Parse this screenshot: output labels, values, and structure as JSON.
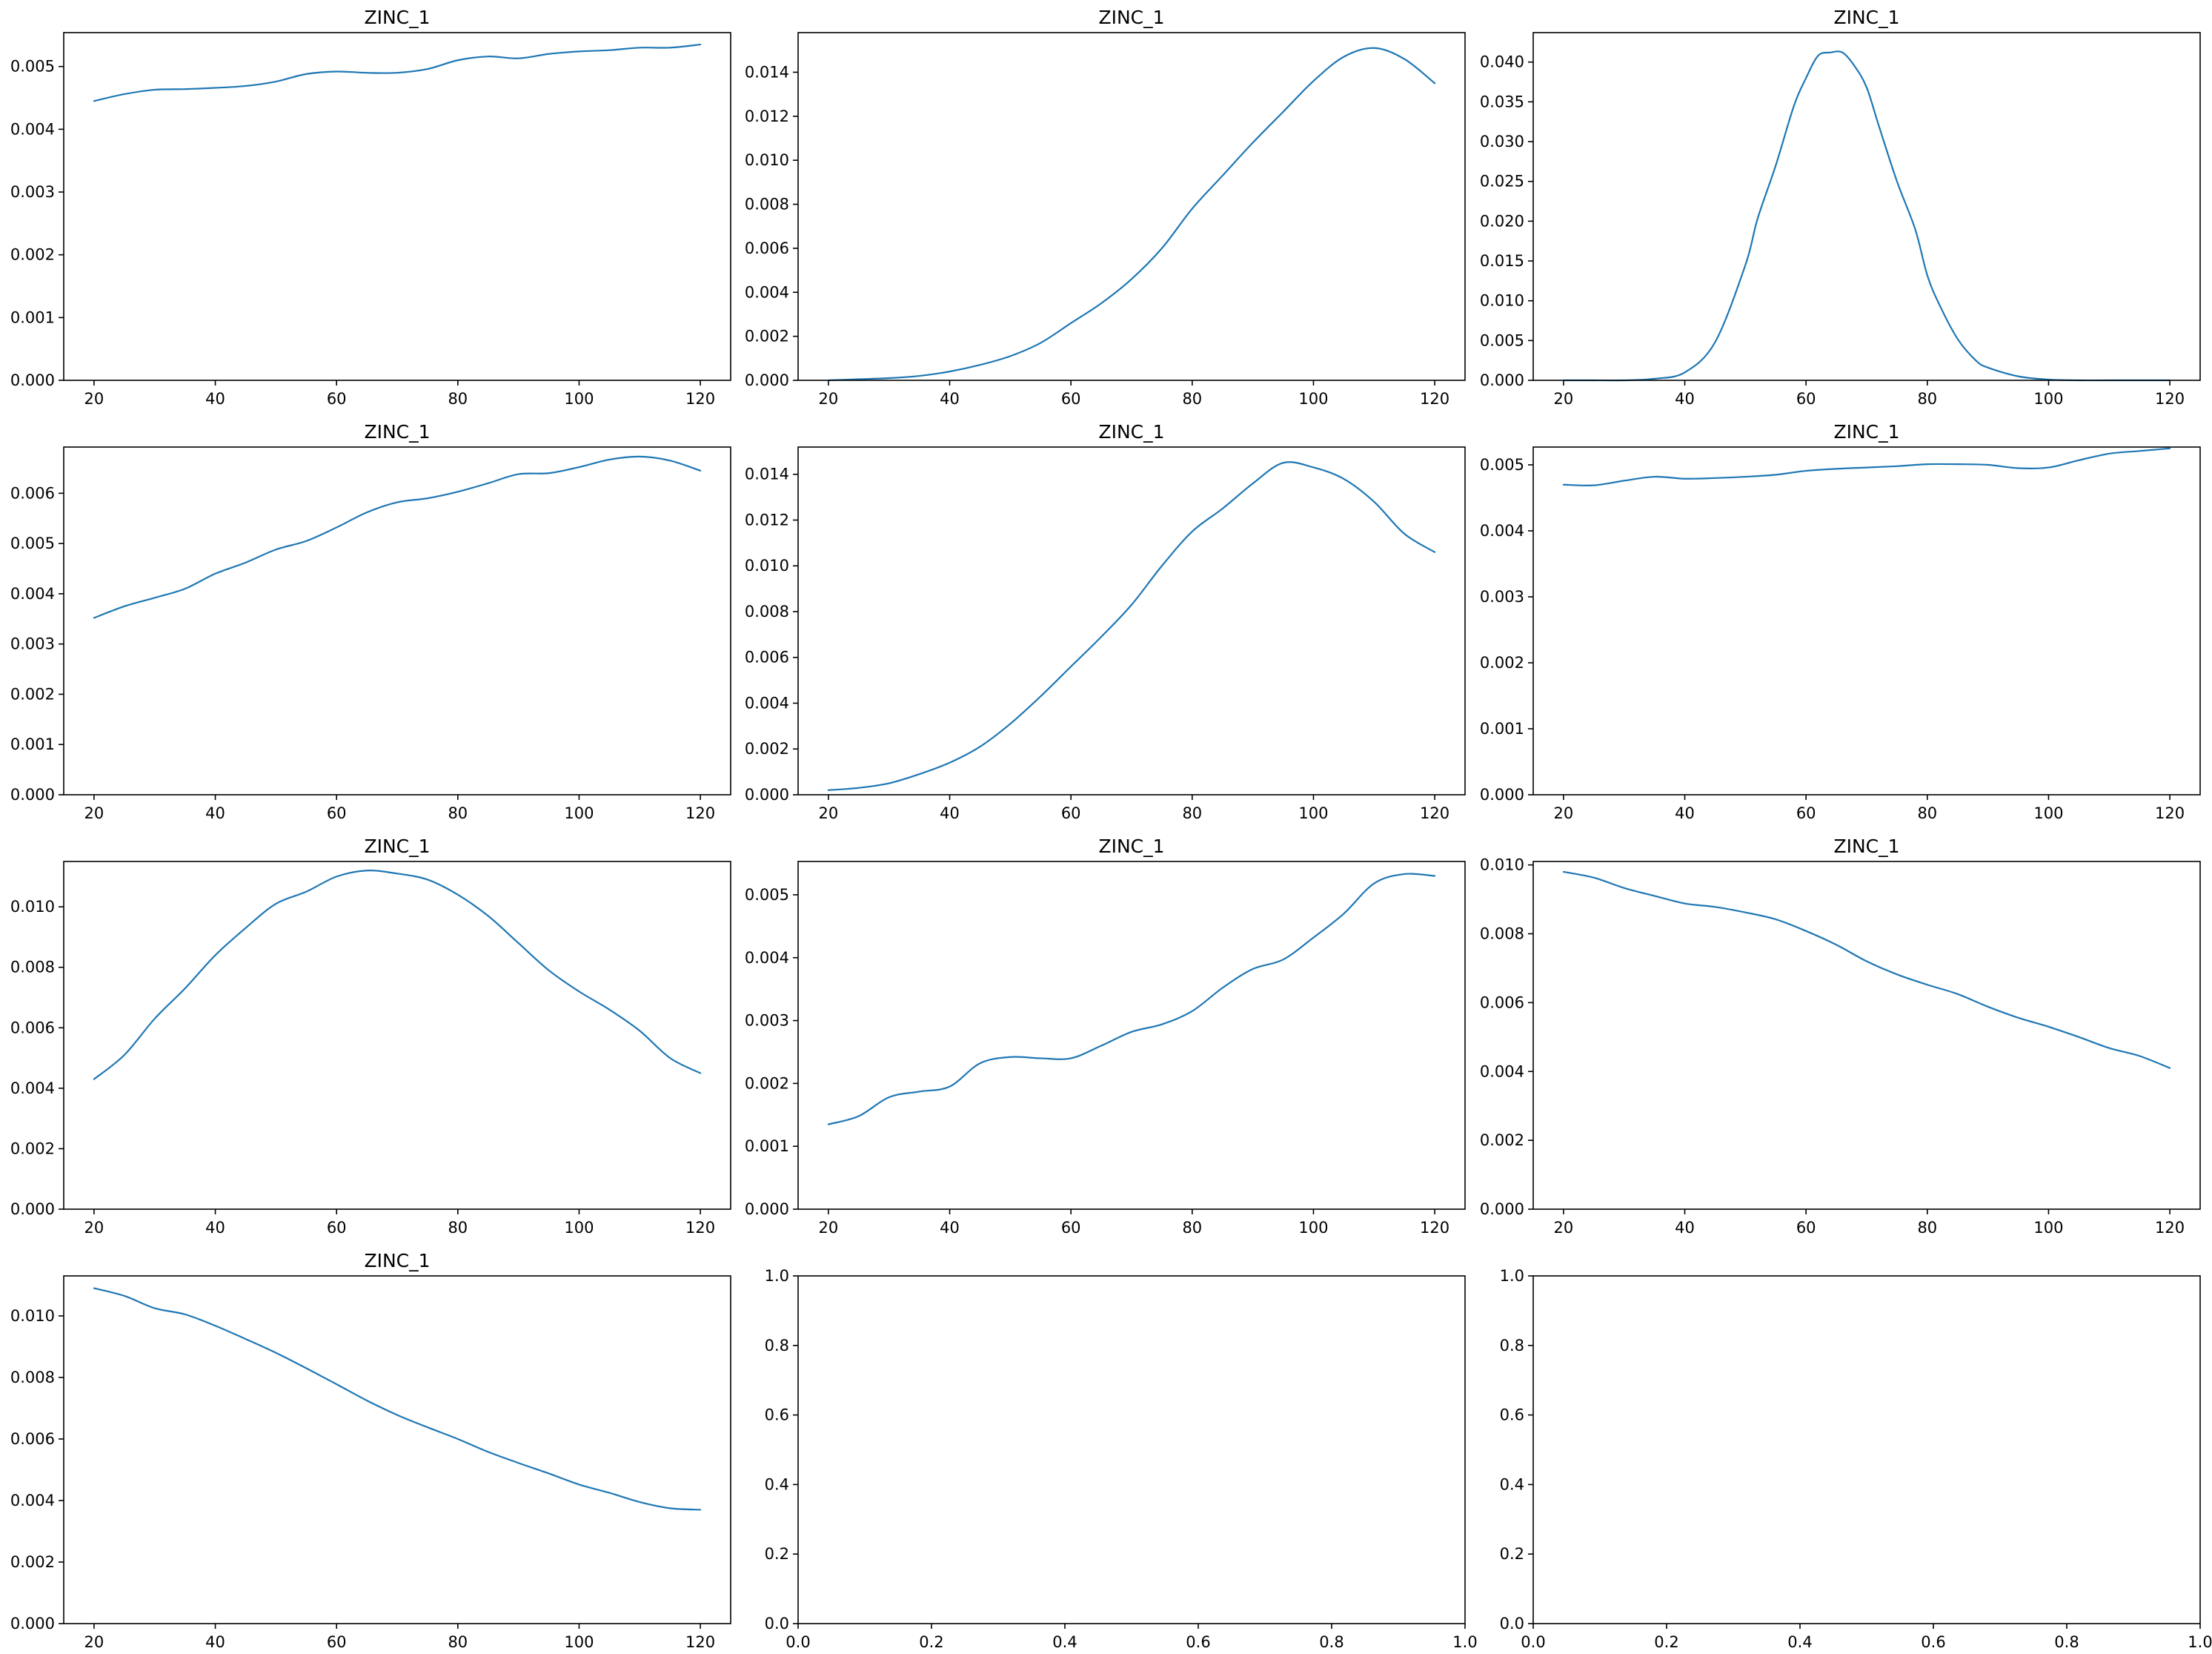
{
  "colors": {
    "series": "#1f77b4",
    "axes": "#000000",
    "background": "#ffffff"
  },
  "chart_data": [
    {
      "type": "line",
      "title": "ZINC_1",
      "xlabel": "",
      "ylabel": "",
      "xlim": [
        15,
        125
      ],
      "ylim": [
        0,
        0.00554
      ],
      "grid": false,
      "x_ticks": [
        "20",
        "40",
        "60",
        "80",
        "100",
        "120"
      ],
      "y_ticks": [
        "0.000",
        "0.001",
        "0.002",
        "0.003",
        "0.004",
        "0.005"
      ],
      "series": [
        {
          "x": [
            20,
            25,
            30,
            35,
            40,
            45,
            50,
            55,
            60,
            65,
            70,
            75,
            80,
            85,
            90,
            95,
            100,
            105,
            110,
            115,
            120
          ],
          "y": [
            0.00445,
            0.00456,
            0.00463,
            0.00464,
            0.00466,
            0.00469,
            0.00476,
            0.00488,
            0.00492,
            0.0049,
            0.0049,
            0.00496,
            0.0051,
            0.00516,
            0.00513,
            0.0052,
            0.00524,
            0.00526,
            0.0053,
            0.0053,
            0.00535
          ]
        }
      ]
    },
    {
      "type": "line",
      "title": "ZINC_1",
      "xlabel": "",
      "ylabel": "",
      "xlim": [
        15,
        125
      ],
      "ylim": [
        0,
        0.0158
      ],
      "grid": false,
      "x_ticks": [
        "20",
        "40",
        "60",
        "80",
        "100",
        "120"
      ],
      "y_ticks": [
        "0.000",
        "0.002",
        "0.004",
        "0.006",
        "0.008",
        "0.010",
        "0.012",
        "0.014"
      ],
      "series": [
        {
          "x": [
            20,
            25,
            30,
            35,
            40,
            45,
            50,
            55,
            60,
            65,
            70,
            75,
            80,
            85,
            90,
            95,
            100,
            105,
            110,
            115,
            120
          ],
          "y": [
            0.0,
            5e-05,
            0.0001,
            0.0002,
            0.0004,
            0.0007,
            0.0011,
            0.0017,
            0.0026,
            0.0035,
            0.0046,
            0.006,
            0.0078,
            0.0093,
            0.0108,
            0.0122,
            0.0136,
            0.0147,
            0.0151,
            0.0146,
            0.0135
          ]
        }
      ]
    },
    {
      "type": "line",
      "title": "ZINC_1",
      "xlabel": "",
      "ylabel": "",
      "xlim": [
        15,
        125
      ],
      "ylim": [
        0,
        0.0437
      ],
      "grid": false,
      "x_ticks": [
        "20",
        "40",
        "60",
        "80",
        "100",
        "120"
      ],
      "y_ticks": [
        "0.000",
        "0.005",
        "0.010",
        "0.015",
        "0.020",
        "0.025",
        "0.030",
        "0.035",
        "0.040"
      ],
      "series": [
        {
          "x": [
            20,
            25,
            30,
            35,
            40,
            45,
            50,
            52,
            55,
            58,
            60,
            62,
            64,
            66,
            68,
            70,
            72,
            75,
            78,
            80,
            82,
            85,
            88,
            90,
            95,
            100,
            105,
            110,
            115,
            120
          ],
          "y": [
            0.0,
            0.0,
            0.0,
            0.0002,
            0.001,
            0.0048,
            0.0145,
            0.0203,
            0.027,
            0.0345,
            0.038,
            0.0408,
            0.0412,
            0.0412,
            0.0395,
            0.0368,
            0.032,
            0.025,
            0.019,
            0.0132,
            0.0095,
            0.0052,
            0.0025,
            0.0016,
            0.0005,
            0.0001,
            0.0,
            0.0,
            0.0,
            0.0
          ]
        }
      ]
    },
    {
      "type": "line",
      "title": "ZINC_1",
      "xlabel": "",
      "ylabel": "",
      "xlim": [
        15,
        125
      ],
      "ylim": [
        0,
        0.00692
      ],
      "grid": false,
      "x_ticks": [
        "20",
        "40",
        "60",
        "80",
        "100",
        "120"
      ],
      "y_ticks": [
        "0.000",
        "0.001",
        "0.002",
        "0.003",
        "0.004",
        "0.005",
        "0.006"
      ],
      "series": [
        {
          "x": [
            20,
            25,
            30,
            35,
            40,
            45,
            50,
            55,
            60,
            65,
            70,
            75,
            80,
            85,
            90,
            95,
            100,
            105,
            110,
            115,
            120
          ],
          "y": [
            0.00352,
            0.00375,
            0.00392,
            0.0041,
            0.0044,
            0.00462,
            0.00488,
            0.00505,
            0.00532,
            0.00562,
            0.00582,
            0.0059,
            0.00603,
            0.0062,
            0.00638,
            0.0064,
            0.00652,
            0.00667,
            0.00673,
            0.00665,
            0.00645
          ]
        }
      ]
    },
    {
      "type": "line",
      "title": "ZINC_1",
      "xlabel": "",
      "ylabel": "",
      "xlim": [
        15,
        125
      ],
      "ylim": [
        0,
        0.01519
      ],
      "grid": false,
      "x_ticks": [
        "20",
        "40",
        "60",
        "80",
        "100",
        "120"
      ],
      "y_ticks": [
        "0.000",
        "0.002",
        "0.004",
        "0.006",
        "0.008",
        "0.010",
        "0.012",
        "0.014"
      ],
      "series": [
        {
          "x": [
            20,
            25,
            30,
            35,
            40,
            45,
            50,
            55,
            60,
            65,
            70,
            75,
            80,
            85,
            90,
            95,
            100,
            105,
            110,
            115,
            120
          ],
          "y": [
            0.0002,
            0.0003,
            0.0005,
            0.0009,
            0.0014,
            0.0021,
            0.0031,
            0.0043,
            0.0056,
            0.0069,
            0.0083,
            0.01,
            0.0115,
            0.0125,
            0.0136,
            0.0145,
            0.0143,
            0.0138,
            0.0128,
            0.0114,
            0.0106
          ]
        }
      ]
    },
    {
      "type": "line",
      "title": "ZINC_1",
      "xlabel": "",
      "ylabel": "",
      "xlim": [
        15,
        125
      ],
      "ylim": [
        0,
        0.00527
      ],
      "grid": false,
      "x_ticks": [
        "20",
        "40",
        "60",
        "80",
        "100",
        "120"
      ],
      "y_ticks": [
        "0.000",
        "0.001",
        "0.002",
        "0.003",
        "0.004",
        "0.005"
      ],
      "series": [
        {
          "x": [
            20,
            25,
            30,
            35,
            40,
            45,
            50,
            55,
            60,
            65,
            70,
            75,
            80,
            85,
            90,
            95,
            100,
            105,
            110,
            115,
            120
          ],
          "y": [
            0.0047,
            0.00469,
            0.00476,
            0.00482,
            0.00479,
            0.0048,
            0.00482,
            0.00485,
            0.00491,
            0.00494,
            0.00496,
            0.00498,
            0.00501,
            0.00501,
            0.005,
            0.00495,
            0.00496,
            0.00507,
            0.00517,
            0.00521,
            0.00525
          ]
        }
      ]
    },
    {
      "type": "line",
      "title": "ZINC_1",
      "xlabel": "",
      "ylabel": "",
      "xlim": [
        15,
        125
      ],
      "ylim": [
        0,
        0.0115
      ],
      "grid": false,
      "x_ticks": [
        "20",
        "40",
        "60",
        "80",
        "100",
        "120"
      ],
      "y_ticks": [
        "0.000",
        "0.002",
        "0.004",
        "0.006",
        "0.008",
        "0.010"
      ],
      "series": [
        {
          "x": [
            20,
            25,
            30,
            35,
            40,
            45,
            50,
            55,
            60,
            65,
            70,
            75,
            80,
            85,
            90,
            95,
            100,
            105,
            110,
            115,
            120
          ],
          "y": [
            0.0043,
            0.0051,
            0.0063,
            0.0073,
            0.0084,
            0.0093,
            0.0101,
            0.0105,
            0.011,
            0.0112,
            0.0111,
            0.0109,
            0.0104,
            0.0097,
            0.0088,
            0.0079,
            0.0072,
            0.0066,
            0.0059,
            0.005,
            0.0045
          ]
        }
      ]
    },
    {
      "type": "line",
      "title": "ZINC_1",
      "xlabel": "",
      "ylabel": "",
      "xlim": [
        15,
        125
      ],
      "ylim": [
        0,
        0.00553
      ],
      "grid": false,
      "x_ticks": [
        "20",
        "40",
        "60",
        "80",
        "100",
        "120"
      ],
      "y_ticks": [
        "0.000",
        "0.001",
        "0.002",
        "0.003",
        "0.004",
        "0.005"
      ],
      "series": [
        {
          "x": [
            20,
            25,
            30,
            35,
            40,
            45,
            50,
            55,
            60,
            65,
            70,
            75,
            80,
            85,
            90,
            95,
            100,
            105,
            110,
            115,
            120
          ],
          "y": [
            0.00135,
            0.00148,
            0.00178,
            0.00187,
            0.00195,
            0.00232,
            0.00242,
            0.0024,
            0.0024,
            0.0026,
            0.00282,
            0.00294,
            0.00315,
            0.00352,
            0.00382,
            0.00397,
            0.00432,
            0.0047,
            0.00518,
            0.00533,
            0.0053
          ]
        }
      ]
    },
    {
      "type": "line",
      "title": "ZINC_1",
      "xlabel": "",
      "ylabel": "",
      "xlim": [
        15,
        125
      ],
      "ylim": [
        0,
        0.0101
      ],
      "grid": false,
      "x_ticks": [
        "20",
        "40",
        "60",
        "80",
        "100",
        "120"
      ],
      "y_ticks": [
        "0.000",
        "0.002",
        "0.004",
        "0.006",
        "0.008",
        "0.010"
      ],
      "series": [
        {
          "x": [
            20,
            25,
            30,
            35,
            40,
            45,
            50,
            55,
            60,
            65,
            70,
            75,
            80,
            85,
            90,
            95,
            100,
            105,
            110,
            115,
            120
          ],
          "y": [
            0.0098,
            0.00963,
            0.00933,
            0.0091,
            0.00888,
            0.00878,
            0.00862,
            0.00842,
            0.00808,
            0.00768,
            0.0072,
            0.00682,
            0.00652,
            0.00625,
            0.00588,
            0.00556,
            0.0053,
            0.005,
            0.00468,
            0.00445,
            0.0041
          ]
        }
      ]
    },
    {
      "type": "line",
      "title": "ZINC_1",
      "xlabel": "",
      "ylabel": "",
      "xlim": [
        15,
        125
      ],
      "ylim": [
        0,
        0.0113
      ],
      "grid": false,
      "x_ticks": [
        "20",
        "40",
        "60",
        "80",
        "100",
        "120"
      ],
      "y_ticks": [
        "0.000",
        "0.002",
        "0.004",
        "0.006",
        "0.008",
        "0.010"
      ],
      "series": [
        {
          "x": [
            20,
            25,
            30,
            35,
            40,
            45,
            50,
            55,
            60,
            65,
            70,
            75,
            80,
            85,
            90,
            95,
            100,
            105,
            110,
            115,
            120
          ],
          "y": [
            0.0109,
            0.01065,
            0.01025,
            0.01005,
            0.00968,
            0.00925,
            0.0088,
            0.0083,
            0.00778,
            0.00725,
            0.00678,
            0.00638,
            0.006,
            0.00558,
            0.00522,
            0.00488,
            0.00452,
            0.00425,
            0.00395,
            0.00375,
            0.0037
          ]
        }
      ]
    },
    {
      "type": "line",
      "title": "",
      "xlabel": "",
      "ylabel": "",
      "xlim": [
        0,
        1
      ],
      "ylim": [
        0,
        1
      ],
      "grid": false,
      "x_ticks": [
        "0.0",
        "0.2",
        "0.4",
        "0.6",
        "0.8",
        "1.0"
      ],
      "y_ticks": [
        "0.0",
        "0.2",
        "0.4",
        "0.6",
        "0.8",
        "1.0"
      ],
      "series": []
    },
    {
      "type": "line",
      "title": "",
      "xlabel": "",
      "ylabel": "",
      "xlim": [
        0,
        1
      ],
      "ylim": [
        0,
        1
      ],
      "grid": false,
      "x_ticks": [
        "0.0",
        "0.2",
        "0.4",
        "0.6",
        "0.8",
        "1.0"
      ],
      "y_ticks": [
        "0.0",
        "0.2",
        "0.4",
        "0.6",
        "0.8",
        "1.0"
      ],
      "series": []
    }
  ]
}
